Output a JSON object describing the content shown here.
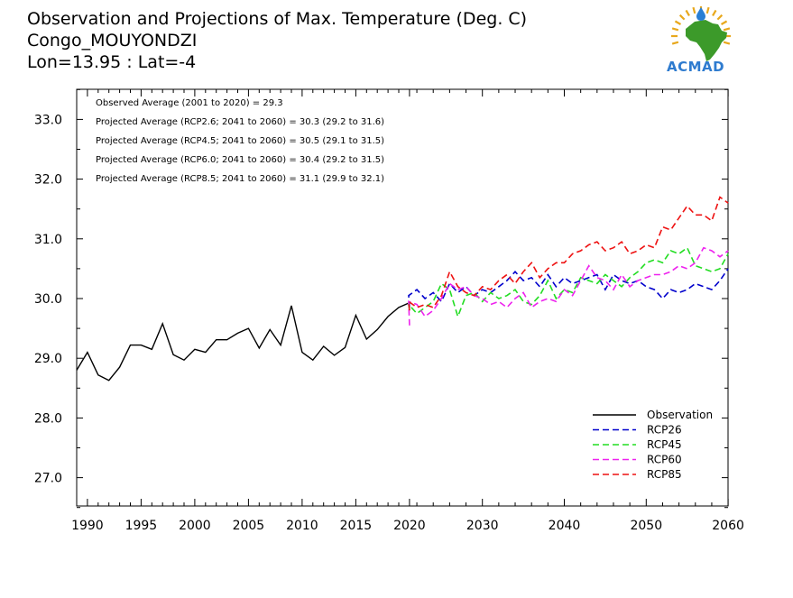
{
  "header": {
    "title_lines": [
      "Observation and Projections of Max. Temperature (Deg. C)",
      "Congo_MOUYONDZI",
      "Lon=13.95 : Lat=-4"
    ]
  },
  "logo": {
    "text": "ACMAD",
    "colors": {
      "africa": "#3c9a2a",
      "sun": "#e8a81c",
      "drop": "#2a7fd4",
      "text": "#2e7bcf"
    }
  },
  "chart_data": {
    "type": "line",
    "xlim": [
      1989,
      2060
    ],
    "ylim": [
      26.5,
      33.5
    ],
    "x_ticks_left": [
      1990,
      1995,
      2000,
      2005,
      2010,
      2015,
      2020
    ],
    "x_ticks_right": [
      2030,
      2040,
      2050,
      2060
    ],
    "y_ticks": [
      "27.0",
      "28.0",
      "29.0",
      "30.0",
      "31.0",
      "32.0",
      "33.0"
    ],
    "annotations": [
      "Observed Average (2001 to 2020) = 29.3",
      "Projected Average (RCP2.6; 2041 to 2060) = 30.3 (29.2 to 31.6)",
      "Projected Average (RCP4.5; 2041 to 2060) = 30.5 (29.1 to 31.5)",
      "Projected Average (RCP6.0; 2041 to 2060) = 30.4 (29.2 to 31.5)",
      "Projected Average (RCP8.5; 2041 to 2060) = 31.1 (29.9 to 32.1)"
    ],
    "legend_position": "bottom-right",
    "series": [
      {
        "name": "Observation",
        "color": "#000000",
        "dashed": false,
        "x": [
          1989,
          1990,
          1991,
          1992,
          1993,
          1994,
          1995,
          1996,
          1997,
          1998,
          1999,
          2000,
          2001,
          2002,
          2003,
          2004,
          2005,
          2006,
          2007,
          2008,
          2009,
          2010,
          2011,
          2012,
          2013,
          2014,
          2015,
          2016,
          2017,
          2018,
          2019,
          2020
        ],
        "y": [
          28.8,
          29.1,
          28.72,
          28.63,
          28.85,
          29.22,
          29.22,
          29.15,
          29.58,
          29.06,
          28.97,
          29.15,
          29.1,
          29.31,
          29.31,
          29.42,
          29.5,
          29.17,
          29.48,
          29.22,
          29.88,
          29.1,
          28.97,
          29.2,
          29.05,
          29.18,
          29.72,
          29.32,
          29.48,
          29.7,
          29.85,
          29.93
        ]
      },
      {
        "name": "RCP26",
        "color": "#0000cc",
        "dashed": true,
        "x": [
          2020,
          2021,
          2022,
          2023,
          2024,
          2025,
          2026,
          2027,
          2028,
          2029,
          2030,
          2031,
          2032,
          2033,
          2034,
          2035,
          2036,
          2037,
          2038,
          2039,
          2040,
          2041,
          2042,
          2043,
          2044,
          2045,
          2046,
          2047,
          2048,
          2049,
          2050,
          2051,
          2052,
          2053,
          2054,
          2055,
          2056,
          2057,
          2058,
          2059,
          2060
        ],
        "y": [
          29.85,
          30.05,
          30.15,
          30.0,
          30.1,
          29.95,
          30.25,
          30.1,
          30.2,
          30.05,
          30.15,
          30.1,
          30.2,
          30.3,
          30.45,
          30.3,
          30.35,
          30.2,
          30.4,
          30.2,
          30.35,
          30.25,
          30.3,
          30.35,
          30.4,
          30.15,
          30.4,
          30.3,
          30.25,
          30.3,
          30.2,
          30.15,
          30.0,
          30.15,
          30.1,
          30.15,
          30.25,
          30.2,
          30.15,
          30.3,
          30.5
        ]
      },
      {
        "name": "RCP45",
        "color": "#22dd22",
        "dashed": true,
        "x": [
          2020,
          2021,
          2022,
          2023,
          2024,
          2025,
          2026,
          2027,
          2028,
          2029,
          2030,
          2031,
          2032,
          2033,
          2034,
          2035,
          2036,
          2037,
          2038,
          2039,
          2040,
          2041,
          2042,
          2043,
          2044,
          2045,
          2046,
          2047,
          2048,
          2049,
          2050,
          2051,
          2052,
          2053,
          2054,
          2055,
          2056,
          2057,
          2058,
          2059,
          2060
        ],
        "y": [
          29.8,
          29.9,
          29.75,
          29.85,
          29.95,
          30.25,
          30.15,
          29.7,
          30.05,
          30.1,
          29.95,
          30.1,
          30.0,
          30.05,
          30.15,
          29.95,
          29.9,
          30.05,
          30.3,
          30.0,
          30.15,
          30.1,
          30.35,
          30.3,
          30.25,
          30.4,
          30.3,
          30.2,
          30.35,
          30.45,
          30.6,
          30.65,
          30.6,
          30.8,
          30.75,
          30.85,
          30.55,
          30.5,
          30.45,
          30.5,
          30.75
        ]
      },
      {
        "name": "RCP60",
        "color": "#ee22ee",
        "dashed": true,
        "x": [
          2020,
          2021,
          2022,
          2023,
          2024,
          2025,
          2026,
          2027,
          2028,
          2029,
          2030,
          2031,
          2032,
          2033,
          2034,
          2035,
          2036,
          2037,
          2038,
          2039,
          2040,
          2041,
          2042,
          2043,
          2044,
          2045,
          2046,
          2047,
          2048,
          2049,
          2050,
          2051,
          2052,
          2053,
          2054,
          2055,
          2056,
          2057,
          2058,
          2059,
          2060
        ],
        "y": [
          29.55,
          29.95,
          29.9,
          29.7,
          29.8,
          30.0,
          30.25,
          30.15,
          30.2,
          30.05,
          30.0,
          29.9,
          29.95,
          29.85,
          30.0,
          30.1,
          29.85,
          29.95,
          30.0,
          29.95,
          30.15,
          30.05,
          30.3,
          30.55,
          30.35,
          30.3,
          30.15,
          30.4,
          30.2,
          30.3,
          30.35,
          30.4,
          30.4,
          30.45,
          30.55,
          30.5,
          30.6,
          30.85,
          30.8,
          30.7,
          30.8
        ]
      },
      {
        "name": "RCP85",
        "color": "#ee1111",
        "dashed": true,
        "x": [
          2020,
          2021,
          2022,
          2023,
          2024,
          2025,
          2026,
          2027,
          2028,
          2029,
          2030,
          2031,
          2032,
          2033,
          2034,
          2035,
          2036,
          2037,
          2038,
          2039,
          2040,
          2041,
          2042,
          2043,
          2044,
          2045,
          2046,
          2047,
          2048,
          2049,
          2050,
          2051,
          2052,
          2053,
          2054,
          2055,
          2056,
          2057,
          2058,
          2059,
          2060
        ],
        "y": [
          29.8,
          29.95,
          29.85,
          29.9,
          29.85,
          30.05,
          30.45,
          30.2,
          30.1,
          30.05,
          30.2,
          30.15,
          30.3,
          30.4,
          30.25,
          30.45,
          30.6,
          30.35,
          30.5,
          30.6,
          30.6,
          30.75,
          30.8,
          30.9,
          30.95,
          30.8,
          30.85,
          30.95,
          30.75,
          30.8,
          30.9,
          30.85,
          31.2,
          31.15,
          31.35,
          31.55,
          31.4,
          31.4,
          31.3,
          31.7,
          31.6
        ]
      }
    ]
  }
}
